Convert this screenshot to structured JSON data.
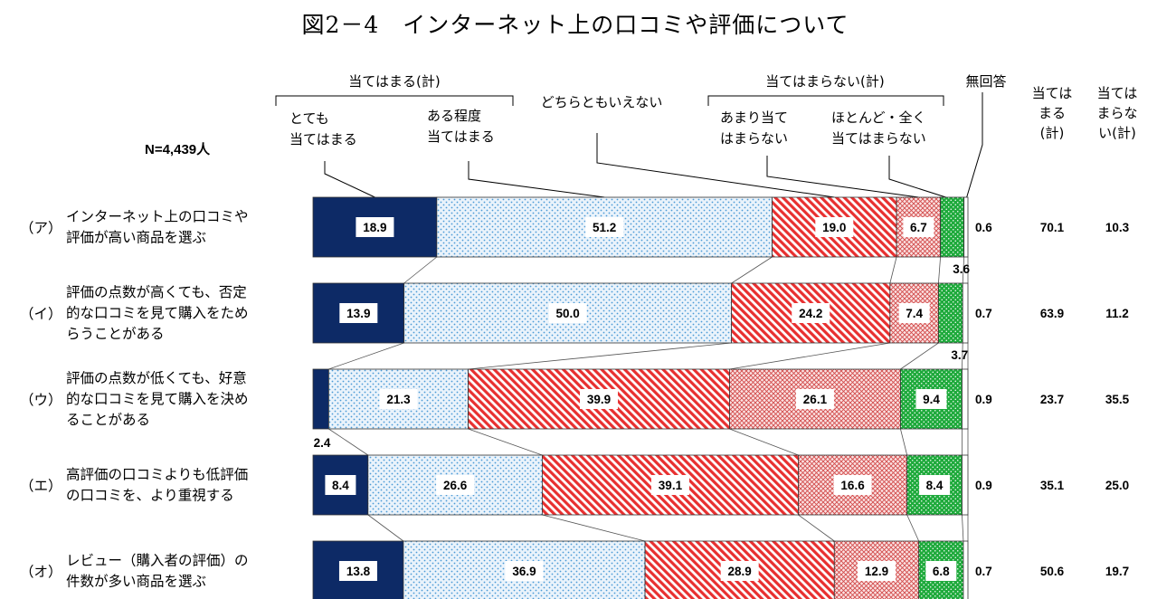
{
  "chart_data": {
    "type": "bar",
    "orientation": "horizontal",
    "stacked": true,
    "title": "図2－4　インターネット上の口コミや評価について",
    "sample_size": "N=4,439人",
    "group_headers": {
      "agree": "当てはまる(計)",
      "disagree": "当てはまらない(計)",
      "no_answer": "無回答"
    },
    "series": [
      {
        "name": [
          "とても",
          "当てはまる"
        ],
        "color": "#0d2a66",
        "values": [
          18.9,
          13.9,
          2.4,
          8.4,
          13.8
        ]
      },
      {
        "name": [
          "ある程度",
          "当てはまる"
        ],
        "color": "#5aa8e0",
        "values": [
          51.2,
          50.0,
          21.3,
          26.6,
          36.9
        ]
      },
      {
        "name": [
          "どちらともいえない"
        ],
        "color": "#e83030",
        "values": [
          19.0,
          24.2,
          39.9,
          39.1,
          28.9
        ]
      },
      {
        "name": [
          "あまり当て",
          "はまらない"
        ],
        "color": "#e06a6a",
        "values": [
          6.7,
          7.4,
          26.1,
          16.6,
          12.9
        ]
      },
      {
        "name": [
          "ほとんど・全く",
          "当てはまらない"
        ],
        "color": "#1faa3c",
        "values": [
          3.6,
          3.7,
          9.4,
          8.4,
          6.8
        ]
      }
    ],
    "no_answer": [
      0.6,
      0.7,
      0.9,
      0.9,
      0.7
    ],
    "categories": [
      {
        "id": "（ア）",
        "lines": [
          "インターネット上の口コミや",
          "評価が高い商品を選ぶ"
        ]
      },
      {
        "id": "（イ）",
        "lines": [
          "評価の点数が高くても、否定",
          "的な口コミを見て購入をため",
          "らうことがある"
        ]
      },
      {
        "id": "（ウ）",
        "lines": [
          "評価の点数が低くても、好意",
          "的な口コミを見て購入を決め",
          "ることがある"
        ]
      },
      {
        "id": "（エ）",
        "lines": [
          "高評価の口コミよりも低評価",
          "の口コミを、より重視する"
        ]
      },
      {
        "id": "（オ）",
        "lines": [
          "レビュー（購入者の評価）の",
          "件数が多い商品を選ぶ"
        ]
      }
    ],
    "totals": {
      "agree_header": [
        "当ては",
        "まる",
        "(計)"
      ],
      "disagree_header": [
        "当ては",
        "まらな",
        "い(計)"
      ],
      "agree": [
        70.1,
        63.9,
        23.7,
        35.1,
        50.6
      ],
      "disagree": [
        10.3,
        11.2,
        35.5,
        25.0,
        19.7
      ]
    },
    "xlim": [
      0,
      100
    ],
    "legend_placement": "top (leader lines to first bar)"
  }
}
